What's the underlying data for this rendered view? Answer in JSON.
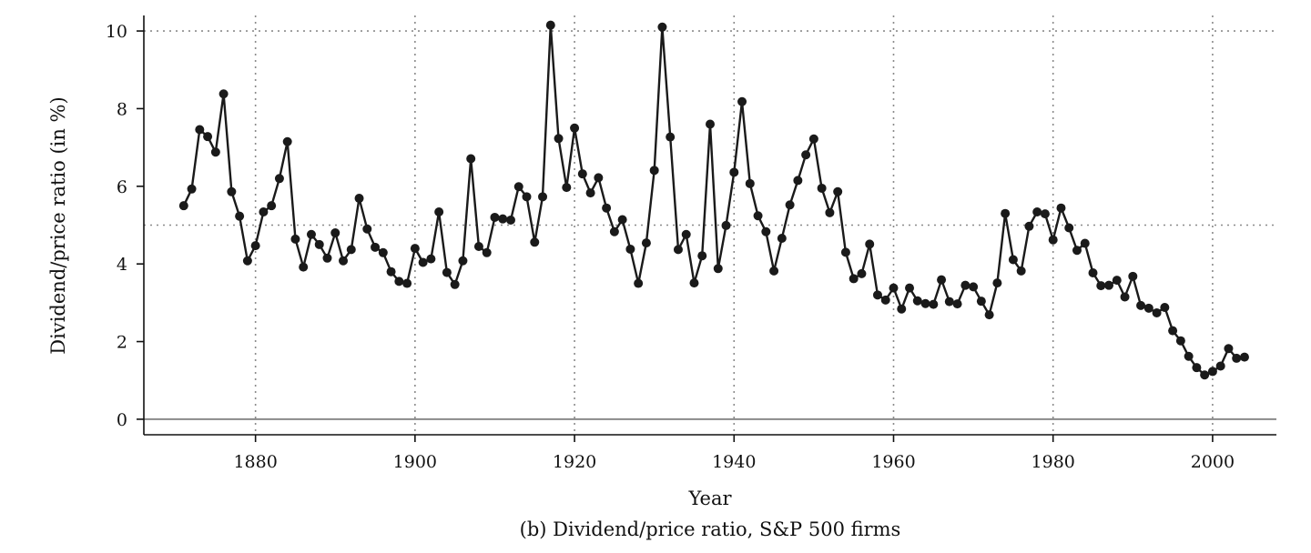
{
  "chart_data": {
    "type": "line",
    "title": "",
    "caption": "(b) Dividend/price ratio, S&P 500 firms",
    "xlabel": "Year",
    "ylabel": "Dividend/price ratio (in %)",
    "xlim": [
      1866,
      2008
    ],
    "ylim": [
      -0.4,
      10.4
    ],
    "xticks": [
      1880,
      1900,
      1920,
      1940,
      1960,
      1980,
      2000
    ],
    "yticks": [
      0,
      2,
      4,
      6,
      8,
      10
    ],
    "vertical_gridlines": [
      1880,
      1900,
      1920,
      1940,
      1960,
      1980,
      2000
    ],
    "horizontal_gridlines": [
      5,
      10
    ],
    "zero_line": 0,
    "grid_style": "dotted",
    "series": [
      {
        "x": [
          1871,
          1872,
          1873,
          1874,
          1875,
          1876,
          1877,
          1878,
          1879,
          1880,
          1881,
          1882,
          1883,
          1884,
          1885,
          1886,
          1887,
          1888,
          1889,
          1890,
          1891,
          1892,
          1893,
          1894,
          1895,
          1896,
          1897,
          1898,
          1899,
          1900,
          1901,
          1902,
          1903,
          1904,
          1905,
          1906,
          1907,
          1908,
          1909,
          1910,
          1911,
          1912,
          1913,
          1914,
          1915,
          1916,
          1917,
          1918,
          1919,
          1920,
          1921,
          1922,
          1923,
          1924,
          1925,
          1926,
          1927,
          1928,
          1929,
          1930,
          1931,
          1932,
          1933,
          1934,
          1935,
          1936,
          1937,
          1938,
          1939,
          1940,
          1941,
          1942,
          1943,
          1944,
          1945,
          1946,
          1947,
          1948,
          1949,
          1950,
          1951,
          1952,
          1953,
          1954,
          1955,
          1956,
          1957,
          1958,
          1959,
          1960,
          1961,
          1962,
          1963,
          1964,
          1965,
          1966,
          1967,
          1968,
          1969,
          1970,
          1971,
          1972,
          1973,
          1974,
          1975,
          1976,
          1977,
          1978,
          1979,
          1980,
          1981,
          1982,
          1983,
          1984,
          1985,
          1986,
          1987,
          1988,
          1989,
          1990,
          1991,
          1992,
          1993,
          1994,
          1995,
          1996,
          1997,
          1998,
          1999,
          2000,
          2001,
          2002,
          2003,
          2004
        ],
        "values": [
          5.5,
          5.93,
          7.46,
          7.28,
          6.88,
          8.38,
          5.86,
          5.23,
          4.08,
          4.47,
          5.34,
          5.5,
          6.2,
          7.15,
          4.64,
          3.92,
          4.76,
          4.5,
          4.15,
          4.8,
          4.08,
          4.37,
          5.69,
          4.9,
          4.43,
          4.29,
          3.8,
          3.55,
          3.5,
          4.4,
          4.04,
          4.13,
          5.34,
          3.78,
          3.47,
          4.08,
          6.71,
          4.45,
          4.29,
          5.2,
          5.16,
          5.13,
          5.99,
          5.73,
          4.56,
          5.73,
          10.15,
          7.23,
          5.97,
          7.5,
          6.32,
          5.83,
          6.22,
          5.44,
          4.83,
          5.14,
          4.38,
          3.5,
          4.54,
          6.41,
          10.1,
          7.27,
          4.37,
          4.76,
          3.51,
          4.21,
          7.6,
          3.88,
          4.99,
          6.36,
          8.18,
          6.07,
          5.24,
          4.83,
          3.82,
          4.66,
          5.52,
          6.15,
          6.81,
          7.22,
          5.95,
          5.32,
          5.86,
          4.3,
          3.62,
          3.75,
          4.51,
          3.2,
          3.07,
          3.38,
          2.84,
          3.38,
          3.05,
          2.98,
          2.96,
          3.59,
          3.03,
          2.97,
          3.45,
          3.41,
          3.04,
          2.69,
          3.51,
          5.3,
          4.11,
          3.82,
          4.97,
          5.34,
          5.29,
          4.62,
          5.44,
          4.93,
          4.35,
          4.53,
          3.77,
          3.44,
          3.45,
          3.58,
          3.15,
          3.68,
          2.93,
          2.86,
          2.74,
          2.88,
          2.28,
          2.02,
          1.62,
          1.33,
          1.14,
          1.23,
          1.37,
          1.82,
          1.57,
          1.6
        ]
      }
    ],
    "colors": {
      "line": "#1a1a1a",
      "marker": "#1a1a1a",
      "grid": "#8a8a8a",
      "zero_line": "#8a8a8a",
      "axis": "#111111"
    }
  }
}
